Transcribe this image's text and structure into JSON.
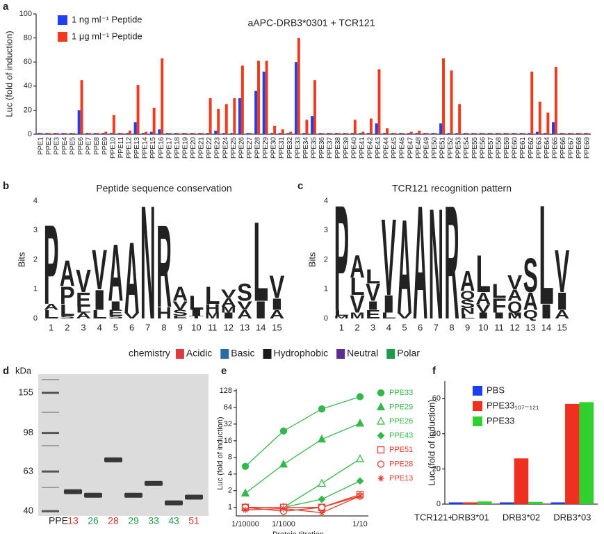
{
  "chart_data": [
    {
      "type": "bar",
      "panel": "a",
      "title": "aAPC-DRB3*0301 + TCR121",
      "ylabel": "Luc (fold of induction)",
      "ylim": [
        0,
        100
      ],
      "yticks": [
        0,
        20,
        40,
        60,
        80,
        100
      ],
      "categories": [
        "PPE1",
        "PPE2",
        "PPE3",
        "PPE4",
        "PPE5",
        "PPE6",
        "PPE7",
        "PPE8",
        "PPE9",
        "PPE10",
        "PPE11",
        "PPE12",
        "PPE13",
        "PPE14",
        "PPE15",
        "PPE16",
        "PPE17",
        "PPE18",
        "PPE19",
        "PPE20",
        "PPE21",
        "PPE22",
        "PPE23",
        "PPE24",
        "PPE25",
        "PPE26",
        "PPE27",
        "PPE28",
        "PPE29",
        "PPE30",
        "PPE31",
        "PPE32",
        "PPE33",
        "PPE34",
        "PPE35",
        "PPE36",
        "PPE37",
        "PPE38",
        "PPE39",
        "PPE40",
        "PPE41",
        "PPE42",
        "PPE43",
        "PPE44",
        "PPE45",
        "PPE46",
        "PPE47",
        "PPE48",
        "PPE49",
        "PPE50",
        "PPE51",
        "PPE52",
        "PPE53",
        "PPE54",
        "PPE55",
        "PPE56",
        "PPE57",
        "PPE58",
        "PPE59",
        "PPE60",
        "PPE61",
        "PPE62",
        "PPE63",
        "PPE64",
        "PPE65",
        "PPE66",
        "PPE67",
        "PPE68",
        "PPE69"
      ],
      "series": [
        {
          "name": "1 ng ml⁻¹ Peptide",
          "color": "#2040f0",
          "values": [
            1,
            1,
            1,
            1,
            1,
            20,
            1,
            1,
            1,
            1,
            1,
            1,
            10,
            1,
            2,
            4,
            1,
            1,
            1,
            1,
            1,
            1,
            3,
            1,
            1,
            30,
            1,
            36,
            52,
            1,
            1,
            1,
            60,
            1,
            15,
            1,
            1,
            1,
            1,
            1,
            1,
            1,
            9,
            1,
            1,
            1,
            1,
            1,
            1,
            1,
            9,
            1,
            1,
            1,
            1,
            1,
            1,
            1,
            1,
            1,
            1,
            1,
            2,
            1,
            10,
            1,
            1,
            1,
            1
          ]
        },
        {
          "name": "1 μg ml⁻¹ Peptide",
          "color": "#f03a1e",
          "values": [
            1,
            1,
            1,
            1,
            1,
            45,
            1,
            1,
            2,
            16,
            1,
            3,
            41,
            2,
            22,
            63,
            1,
            1,
            1,
            1,
            1,
            30,
            21,
            25,
            30,
            57,
            1,
            61,
            61,
            7,
            4,
            2,
            80,
            12,
            45,
            1,
            1,
            1,
            1,
            12,
            2,
            13,
            54,
            5,
            1,
            1,
            2,
            3,
            1,
            1,
            63,
            53,
            25,
            1,
            1,
            1,
            1,
            1,
            1,
            1,
            1,
            52,
            27,
            18,
            56,
            1,
            1,
            1,
            1
          ]
        }
      ]
    },
    {
      "type": "logo",
      "panel": "b",
      "title": "Peptide sequence conservation",
      "ylabel": "Bits",
      "ylim": [
        0,
        4
      ],
      "yticks": [
        0,
        1,
        2,
        3,
        4
      ],
      "positions": [
        1,
        2,
        3,
        4,
        5,
        6,
        7,
        8,
        9,
        10,
        11,
        12,
        13,
        14,
        15
      ],
      "stacks": [
        [
          {
            "letter": "L",
            "bits": 0.3,
            "color": "#1a1a1a"
          },
          {
            "letter": "A",
            "bits": 0.2,
            "color": "#1a1a1a"
          },
          {
            "letter": "P",
            "bits": 2.8,
            "color": "#1a1a1a"
          }
        ],
        [
          {
            "letter": "S",
            "bits": 0.1,
            "color": "#1f9a4b"
          },
          {
            "letter": "L",
            "bits": 0.4,
            "color": "#1a1a1a"
          },
          {
            "letter": "P",
            "bits": 0.6,
            "color": "#1a1a1a"
          },
          {
            "letter": "A",
            "bits": 0.9,
            "color": "#1a1a1a"
          }
        ],
        [
          {
            "letter": "A",
            "bits": 0.2,
            "color": "#1a1a1a"
          },
          {
            "letter": "L",
            "bits": 0.2,
            "color": "#1a1a1a"
          },
          {
            "letter": "E",
            "bits": 0.5,
            "color": "#e03a3e"
          },
          {
            "letter": "V",
            "bits": 0.8,
            "color": "#1a1a1a"
          }
        ],
        [
          {
            "letter": "L",
            "bits": 0.3,
            "color": "#1a1a1a"
          },
          {
            "letter": "I",
            "bits": 0.7,
            "color": "#1a1a1a"
          },
          {
            "letter": "V",
            "bits": 1.4,
            "color": "#1a1a1a"
          }
        ],
        [
          {
            "letter": "S",
            "bits": 0.1,
            "color": "#1f9a4b"
          },
          {
            "letter": "E",
            "bits": 0.2,
            "color": "#e03a3e"
          },
          {
            "letter": "I",
            "bits": 0.3,
            "color": "#1a1a1a"
          },
          {
            "letter": "A",
            "bits": 2.0,
            "color": "#1a1a1a"
          }
        ],
        [
          {
            "letter": "V",
            "bits": 0.2,
            "color": "#1a1a1a"
          },
          {
            "letter": "A",
            "bits": 2.5,
            "color": "#1a1a1a"
          }
        ],
        [
          {
            "letter": "N",
            "bits": 4.0,
            "color": "#5b2d8e"
          }
        ],
        [
          {
            "letter": "H",
            "bits": 0.4,
            "color": "#2b6aa8"
          },
          {
            "letter": "R",
            "bits": 2.9,
            "color": "#2b6aa8"
          }
        ],
        [
          {
            "letter": "E",
            "bits": 0.1,
            "color": "#e03a3e"
          },
          {
            "letter": "S",
            "bits": 0.2,
            "color": "#1f9a4b"
          },
          {
            "letter": "V",
            "bits": 0.3,
            "color": "#1a1a1a"
          },
          {
            "letter": "A",
            "bits": 0.5,
            "color": "#1a1a1a"
          }
        ],
        [
          {
            "letter": "T",
            "bits": 0.1,
            "color": "#1f9a4b"
          },
          {
            "letter": "I",
            "bits": 0.2,
            "color": "#1a1a1a"
          },
          {
            "letter": "L",
            "bits": 0.5,
            "color": "#1a1a1a"
          }
        ],
        [
          {
            "letter": "M",
            "bits": 0.2,
            "color": "#1a1a1a"
          },
          {
            "letter": "H",
            "bits": 0.3,
            "color": "#2b6aa8"
          },
          {
            "letter": "L",
            "bits": 0.6,
            "color": "#1a1a1a"
          }
        ],
        [
          {
            "letter": "I",
            "bits": 0.2,
            "color": "#1a1a1a"
          },
          {
            "letter": "M",
            "bits": 0.2,
            "color": "#1a1a1a"
          },
          {
            "letter": "A",
            "bits": 0.3,
            "color": "#1a1a1a"
          },
          {
            "letter": "V",
            "bits": 0.3,
            "color": "#1a1a1a"
          }
        ],
        [
          {
            "letter": "A",
            "bits": 0.3,
            "color": "#1a1a1a"
          },
          {
            "letter": "V",
            "bits": 0.3,
            "color": "#1a1a1a"
          },
          {
            "letter": "S",
            "bits": 0.6,
            "color": "#1f9a4b"
          }
        ],
        [
          {
            "letter": "I",
            "bits": 0.6,
            "color": "#1a1a1a"
          },
          {
            "letter": "L",
            "bits": 2.8,
            "color": "#1a1a1a"
          }
        ],
        [
          {
            "letter": "A",
            "bits": 0.3,
            "color": "#1a1a1a"
          },
          {
            "letter": "I",
            "bits": 0.4,
            "color": "#1a1a1a"
          },
          {
            "letter": "V",
            "bits": 0.8,
            "color": "#1a1a1a"
          }
        ]
      ]
    },
    {
      "type": "logo",
      "panel": "c",
      "title": "TCR121 recognition pattern",
      "ylabel": "Bits",
      "ylim": [
        0,
        4
      ],
      "yticks": [
        0,
        1,
        2,
        3,
        4
      ],
      "positions": [
        1,
        2,
        3,
        4,
        5,
        6,
        7,
        8,
        9,
        10,
        11,
        12,
        13,
        14,
        15
      ],
      "stacks": [
        [
          {
            "letter": "M",
            "bits": 0.1,
            "color": "#1a1a1a"
          },
          {
            "letter": "L",
            "bits": 0.2,
            "color": "#1a1a1a"
          },
          {
            "letter": "P",
            "bits": 3.7,
            "color": "#1a1a1a"
          }
        ],
        [
          {
            "letter": "M",
            "bits": 0.2,
            "color": "#1a1a1a"
          },
          {
            "letter": "V",
            "bits": 0.6,
            "color": "#1a1a1a"
          },
          {
            "letter": "L",
            "bits": 0.6,
            "color": "#1a1a1a"
          },
          {
            "letter": "A",
            "bits": 0.8,
            "color": "#1a1a1a"
          }
        ],
        [
          {
            "letter": "E",
            "bits": 0.3,
            "color": "#e03a3e"
          },
          {
            "letter": "I",
            "bits": 0.3,
            "color": "#1a1a1a"
          },
          {
            "letter": "V",
            "bits": 0.6,
            "color": "#1a1a1a"
          },
          {
            "letter": "L",
            "bits": 0.5,
            "color": "#1a1a1a"
          }
        ],
        [
          {
            "letter": "L",
            "bits": 0.2,
            "color": "#1a1a1a"
          },
          {
            "letter": "I",
            "bits": 0.6,
            "color": "#1a1a1a"
          },
          {
            "letter": "V",
            "bits": 2.7,
            "color": "#1a1a1a"
          }
        ],
        [
          {
            "letter": "V",
            "bits": 0.2,
            "color": "#1a1a1a"
          },
          {
            "letter": "A",
            "bits": 3.3,
            "color": "#1a1a1a"
          }
        ],
        [
          {
            "letter": "A",
            "bits": 4.0,
            "color": "#1a1a1a"
          }
        ],
        [
          {
            "letter": "N",
            "bits": 3.9,
            "color": "#5b2d8e"
          }
        ],
        [
          {
            "letter": "R",
            "bits": 4.0,
            "color": "#2b6aa8"
          }
        ],
        [
          {
            "letter": "L",
            "bits": 0.15,
            "color": "#1a1a1a"
          },
          {
            "letter": "N",
            "bits": 0.2,
            "color": "#5b2d8e"
          },
          {
            "letter": "S",
            "bits": 0.3,
            "color": "#1f9a4b"
          },
          {
            "letter": "Q",
            "bits": 0.3,
            "color": "#5b2d8e"
          },
          {
            "letter": "A",
            "bits": 0.7,
            "color": "#1a1a1a"
          }
        ],
        [
          {
            "letter": "I",
            "bits": 0.2,
            "color": "#1a1a1a"
          },
          {
            "letter": "V",
            "bits": 0.3,
            "color": "#1a1a1a"
          },
          {
            "letter": "A",
            "bits": 0.4,
            "color": "#1a1a1a"
          },
          {
            "letter": "L",
            "bits": 1.3,
            "color": "#1a1a1a"
          }
        ],
        [
          {
            "letter": "I",
            "bits": 0.2,
            "color": "#1a1a1a"
          },
          {
            "letter": "F",
            "bits": 0.5,
            "color": "#1a1a1a"
          },
          {
            "letter": "L",
            "bits": 0.5,
            "color": "#1a1a1a"
          }
        ],
        [
          {
            "letter": "M",
            "bits": 0.2,
            "color": "#1a1a1a"
          },
          {
            "letter": "Q",
            "bits": 0.4,
            "color": "#5b2d8e"
          },
          {
            "letter": "A",
            "bits": 0.4,
            "color": "#1a1a1a"
          },
          {
            "letter": "V",
            "bits": 0.5,
            "color": "#1a1a1a"
          }
        ],
        [
          {
            "letter": "Q",
            "bits": 0.3,
            "color": "#5b2d8e"
          },
          {
            "letter": "A",
            "bits": 0.6,
            "color": "#1a1a1a"
          },
          {
            "letter": "S",
            "bits": 1.2,
            "color": "#1f9a4b"
          }
        ],
        [
          {
            "letter": "I",
            "bits": 0.5,
            "color": "#1a1a1a"
          },
          {
            "letter": "L",
            "bits": 3.5,
            "color": "#1a1a1a"
          }
        ],
        [
          {
            "letter": "A",
            "bits": 0.3,
            "color": "#1a1a1a"
          },
          {
            "letter": "I",
            "bits": 0.6,
            "color": "#1a1a1a"
          },
          {
            "letter": "V",
            "bits": 1.5,
            "color": "#1a1a1a"
          }
        ]
      ]
    },
    {
      "type": "gel",
      "panel": "d",
      "ylabel": "kDa",
      "log_scale": true,
      "ylim": [
        37,
        200
      ],
      "yticks": [
        155,
        98,
        63,
        40
      ],
      "lane_prefix": "PPE",
      "lanes": [
        {
          "label": "13",
          "color": "#e0302a",
          "value": 50
        },
        {
          "label": "26",
          "color": "#1f9a4b",
          "value": 48
        },
        {
          "label": "28",
          "color": "#e0302a",
          "value": 72
        },
        {
          "label": "29",
          "color": "#1f9a4b",
          "value": 48
        },
        {
          "label": "33",
          "color": "#1f9a4b",
          "value": 55
        },
        {
          "label": "43",
          "color": "#1f9a4b",
          "value": 44
        },
        {
          "label": "51",
          "color": "#e0302a",
          "value": 47
        }
      ]
    },
    {
      "type": "line",
      "panel": "e",
      "ylabel": "Luc (fold of induction)",
      "xlabel": "Protein titration",
      "log_scale": true,
      "ylim": [
        0.7,
        128
      ],
      "yticks": [
        1,
        2,
        4,
        8,
        16,
        32,
        64,
        128
      ],
      "categories": [
        "1/10000",
        "1/1000",
        null,
        "1/10"
      ],
      "series": [
        {
          "name": "PPE33",
          "color": "#33b84a",
          "marker": "circle",
          "filled": true,
          "values": [
            5.5,
            24,
            60,
            100
          ]
        },
        {
          "name": "PPE29",
          "color": "#33b84a",
          "marker": "triangle",
          "filled": true,
          "values": [
            1.8,
            6,
            17,
            33
          ]
        },
        {
          "name": "PPE26",
          "color": "#33b84a",
          "marker": "triangle",
          "filled": false,
          "values": [
            1,
            1,
            2.7,
            7.5
          ]
        },
        {
          "name": "PPE43",
          "color": "#33b84a",
          "marker": "diamond",
          "filled": true,
          "values": [
            1,
            1,
            1.4,
            3
          ]
        },
        {
          "name": "PPE51",
          "color": "#e8392b",
          "marker": "square",
          "filled": false,
          "values": [
            1,
            1,
            1,
            1.7
          ]
        },
        {
          "name": "PPE28",
          "color": "#e8392b",
          "marker": "circle",
          "filled": false,
          "values": [
            1,
            0.85,
            1,
            1.6
          ]
        },
        {
          "name": "PPE13",
          "color": "#e8392b",
          "marker": "star",
          "filled": false,
          "values": [
            0.9,
            0.95,
            0.8,
            1.6
          ]
        }
      ]
    },
    {
      "type": "bar",
      "panel": "f",
      "ylabel": "Luc (fold of induction)",
      "xlabel": "TCR121+",
      "ylim": [
        0,
        70
      ],
      "yticks": [
        0,
        20,
        40,
        60
      ],
      "categories": [
        "DRB3*01",
        "DRB3*02",
        "DRB3*03"
      ],
      "series": [
        {
          "name": "PBS",
          "color": "#1a3ff0",
          "values": [
            1,
            1,
            1
          ]
        },
        {
          "name": "PPE33₁₀₇₋₁₂₁",
          "color": "#f0301e",
          "values": [
            1,
            26,
            57
          ]
        },
        {
          "name": "PPE33",
          "color": "#2fd12f",
          "values": [
            1.5,
            1.3,
            58
          ]
        }
      ]
    }
  ],
  "chemistry_legend": {
    "title": "chemistry",
    "items": [
      {
        "name": "Acidic",
        "color": "#e03a3e"
      },
      {
        "name": "Basic",
        "color": "#2b6aa8"
      },
      {
        "name": "Hydrophobic",
        "color": "#1a1a1a"
      },
      {
        "name": "Neutral",
        "color": "#5b2d8e"
      },
      {
        "name": "Polar",
        "color": "#1f9a4b"
      }
    ]
  }
}
